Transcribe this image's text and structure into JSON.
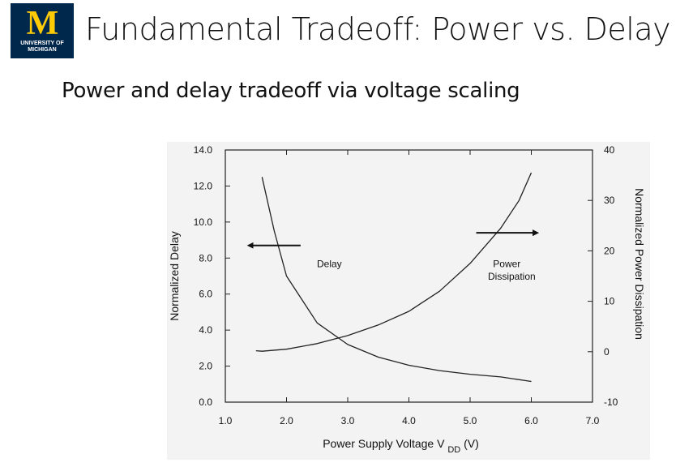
{
  "slide": {
    "title": "Fundamental Tradeoff: Power vs. Delay",
    "subtitle": "Power and delay tradeoff via voltage scaling"
  },
  "logo": {
    "letter": "M",
    "line1": "UNIVERSITY OF",
    "line2": "MICHIGAN",
    "bg_color": "#00274c",
    "letter_color": "#ffcb05"
  },
  "chart_data": {
    "type": "line",
    "xlabel": "Power Supply Voltage V",
    "xlabel_subscript": "DD",
    "xlabel_unit": "(V)",
    "ylabel": "Normalized Delay",
    "y2label": "Normalized Power Dissipation",
    "xlim": [
      1.0,
      7.0
    ],
    "ylim": [
      0.0,
      14.0
    ],
    "y2lim": [
      -10,
      40
    ],
    "x_ticks": [
      "1.0",
      "2.0",
      "3.0",
      "4.0",
      "5.0",
      "6.0",
      "7.0"
    ],
    "y_ticks": [
      "0.0",
      "2.0",
      "4.0",
      "6.0",
      "8.0",
      "10.0",
      "12.0",
      "14.0"
    ],
    "y2_ticks": [
      "-10",
      "0",
      "10",
      "20",
      "30",
      "40"
    ],
    "grid": false,
    "series": [
      {
        "name": "Delay",
        "axis": "left",
        "points": [
          [
            1.6,
            12.5
          ],
          [
            1.8,
            9.5
          ],
          [
            2.0,
            7.0
          ],
          [
            2.5,
            4.4
          ],
          [
            3.0,
            3.2
          ],
          [
            3.5,
            2.5
          ],
          [
            4.0,
            2.05
          ],
          [
            4.5,
            1.75
          ],
          [
            5.0,
            1.55
          ],
          [
            5.5,
            1.4
          ],
          [
            6.0,
            1.15
          ]
        ]
      },
      {
        "name": "Power Dissipation",
        "axis": "right",
        "points": [
          [
            1.5,
            0.2
          ],
          [
            1.6,
            0.1
          ],
          [
            2.0,
            0.5
          ],
          [
            2.5,
            1.6
          ],
          [
            3.0,
            3.2
          ],
          [
            3.5,
            5.3
          ],
          [
            4.0,
            8.0
          ],
          [
            4.5,
            12.0
          ],
          [
            5.0,
            17.5
          ],
          [
            5.5,
            24.5
          ],
          [
            5.8,
            30.0
          ],
          [
            6.0,
            35.5
          ]
        ]
      }
    ],
    "annotations": [
      {
        "text": "Delay",
        "target_series": "Delay",
        "arrow": "left"
      },
      {
        "text": "Power",
        "text2": "Dissipation",
        "target_series": "Power Dissipation",
        "arrow": "right"
      }
    ]
  }
}
